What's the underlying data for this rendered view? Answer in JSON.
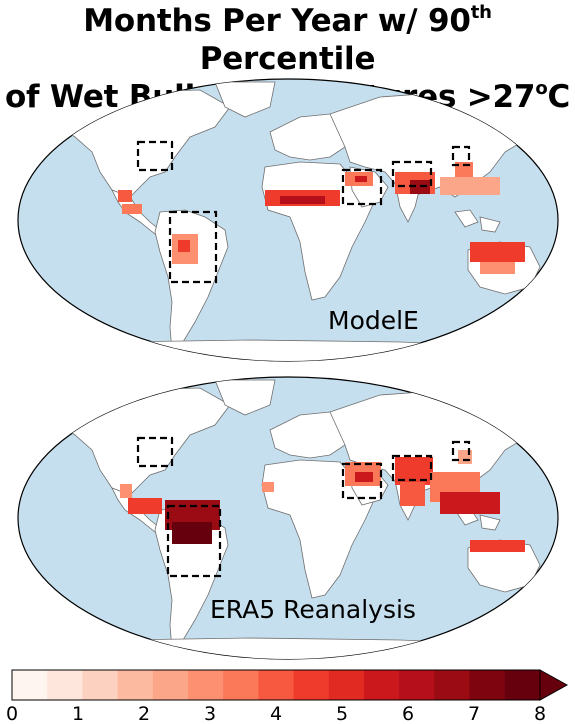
{
  "title": {
    "line1_prefix": "Months Per Year w/ 90",
    "line1_sup": "th",
    "line1_suffix": " Percentile",
    "line2_prefix": "of Wet Bulb Temperatures >27",
    "line2_sup": "o",
    "line2_suffix": "C"
  },
  "panels": [
    {
      "label": "ModelE"
    },
    {
      "label": "ERA5 Reanalysis"
    }
  ],
  "colors": {
    "ocean": "#c6dfee",
    "land": "#ffffff",
    "coastline": "#6f6f6f",
    "box": "#000000"
  },
  "colorbar": {
    "min": 0,
    "max": 8,
    "ticks": [
      "0",
      "1",
      "2",
      "3",
      "4",
      "5",
      "6",
      "7",
      "8"
    ],
    "extend": "max",
    "colors": [
      "#fff5f0",
      "#fee6dc",
      "#fdd1c0",
      "#fcbba1",
      "#fca689",
      "#fc9070",
      "#fb7858",
      "#f6593f",
      "#ef3b2c",
      "#e02a22",
      "#cb181d",
      "#b40f1a",
      "#9a0b14",
      "#7e0510",
      "#67000d"
    ]
  }
}
